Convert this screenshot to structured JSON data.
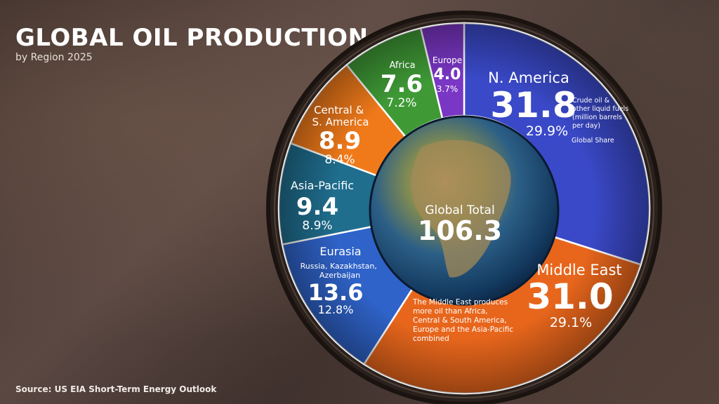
{
  "header": {
    "title": "GLOBAL OIL PRODUCTION",
    "subtitle": "by Region 2025"
  },
  "footer": {
    "source": "Source: US EIA Short-Term Energy Outlook"
  },
  "chart_data": {
    "type": "pie",
    "variant": "donut",
    "title": "GLOBAL OIL PRODUCTION",
    "subtitle": "by Region 2025",
    "total_label": "Global Total",
    "total_value": "106.3",
    "unit_note": "Crude oil & other liquid fuels (million barrels per day)",
    "share_note": "Global Share",
    "annotation": "The Middle East produces more oil than Africa, Central & South America, Europe and the Asia-Pacific combined",
    "slices": [
      {
        "label": "N. America",
        "value": 31.8,
        "value_text": "31.8",
        "share": 29.9,
        "share_text": "29.9%",
        "color": "#3a49c8"
      },
      {
        "label": "Middle East",
        "value": 31.0,
        "value_text": "31.0",
        "share": 29.1,
        "share_text": "29.1%",
        "color": "#e8661c"
      },
      {
        "label": "Eurasia",
        "sublabel": "Russia, Kazakhstan, Azerbaijan",
        "value": 13.6,
        "value_text": "13.6",
        "share": 12.8,
        "share_text": "12.8%",
        "color": "#2f63c9"
      },
      {
        "label": "Asia-Pacific",
        "value": 9.4,
        "value_text": "9.4",
        "share": 8.9,
        "share_text": "8.9%",
        "color": "#1f6e8e"
      },
      {
        "label": "Central & S. America",
        "value": 8.9,
        "value_text": "8.9",
        "share": 8.4,
        "share_text": "8.4%",
        "color": "#f07a1a"
      },
      {
        "label": "Africa",
        "value": 7.6,
        "value_text": "7.6",
        "share": 7.2,
        "share_text": "7.2%",
        "color": "#3f9a36"
      },
      {
        "label": "Europe",
        "value": 4.0,
        "value_text": "4.0",
        "share": 3.7,
        "share_text": "3.7%",
        "color": "#7a36c4"
      }
    ]
  }
}
